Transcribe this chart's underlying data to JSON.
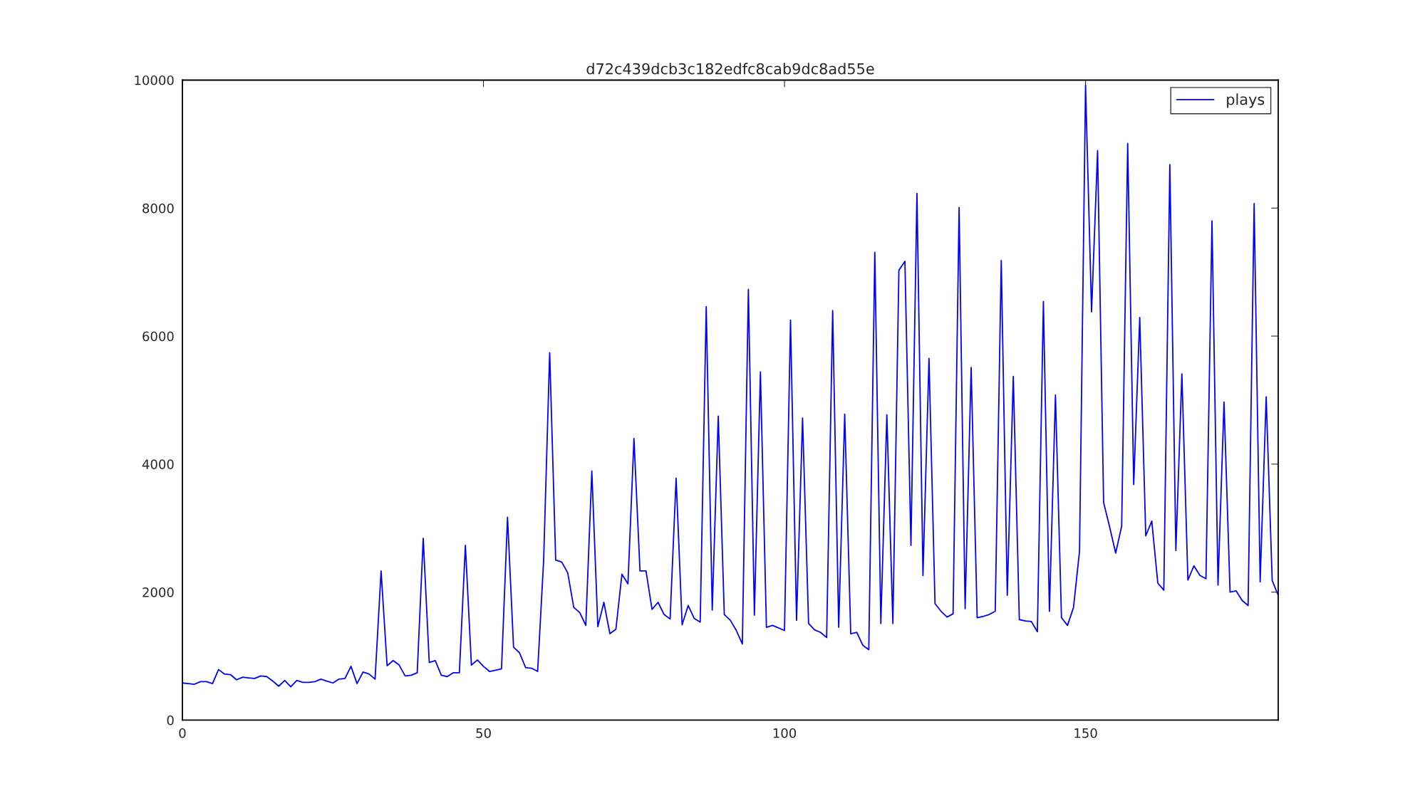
{
  "chart_data": {
    "type": "line",
    "title": "d72c439dcb3c182edfc8cab9dc8ad55e",
    "x": [
      0,
      1,
      2,
      3,
      4,
      5,
      6,
      7,
      8,
      9,
      10,
      11,
      12,
      13,
      14,
      15,
      16,
      17,
      18,
      19,
      20,
      21,
      22,
      23,
      24,
      25,
      26,
      27,
      28,
      29,
      30,
      31,
      32,
      33,
      34,
      35,
      36,
      37,
      38,
      39,
      40,
      41,
      42,
      43,
      44,
      45,
      46,
      47,
      48,
      49,
      50,
      51,
      52,
      53,
      54,
      55,
      56,
      57,
      58,
      59,
      60,
      61,
      62,
      63,
      64,
      65,
      66,
      67,
      68,
      69,
      70,
      71,
      72,
      73,
      74,
      75,
      76,
      77,
      78,
      79,
      80,
      81,
      82,
      83,
      84,
      85,
      86,
      87,
      88,
      89,
      90,
      91,
      92,
      93,
      94,
      95,
      96,
      97,
      98,
      99,
      100,
      101,
      102,
      103,
      104,
      105,
      106,
      107,
      108,
      109,
      110,
      111,
      112,
      113,
      114,
      115,
      116,
      117,
      118,
      119,
      120,
      121,
      122,
      123,
      124,
      125,
      126,
      127,
      128,
      129,
      130,
      131,
      132,
      133,
      134,
      135,
      136,
      137,
      138,
      139,
      140,
      141,
      142,
      143,
      144,
      145,
      146,
      147,
      148,
      149,
      150,
      151,
      152,
      153,
      154,
      155,
      156,
      157,
      158,
      159,
      160,
      161,
      162,
      163,
      164,
      165,
      166,
      167,
      168,
      169,
      170,
      171,
      172,
      173,
      174,
      175,
      176,
      177,
      178,
      179,
      180,
      181,
      182
    ],
    "series": [
      {
        "name": "plays",
        "color": "#0000ff",
        "values": [
          580,
          570,
          560,
          600,
          600,
          570,
          790,
          720,
          710,
          630,
          670,
          660,
          650,
          690,
          680,
          610,
          530,
          620,
          520,
          620,
          590,
          590,
          600,
          640,
          610,
          580,
          640,
          650,
          840,
          570,
          750,
          720,
          640,
          2330,
          850,
          930,
          860,
          690,
          700,
          740,
          2840,
          900,
          930,
          700,
          680,
          740,
          740,
          2730,
          860,
          940,
          840,
          760,
          780,
          800,
          3170,
          1140,
          1050,
          820,
          810,
          760,
          2500,
          5740,
          2500,
          2470,
          2300,
          1760,
          1680,
          1480,
          3890,
          1460,
          1840,
          1350,
          1420,
          2280,
          2130,
          4400,
          2330,
          2330,
          1730,
          1840,
          1650,
          1580,
          3780,
          1490,
          1790,
          1590,
          1530,
          6460,
          1720,
          4750,
          1650,
          1560,
          1400,
          1190,
          6730,
          1640,
          5440,
          1450,
          1480,
          1440,
          1400,
          6250,
          1560,
          4720,
          1510,
          1410,
          1370,
          1290,
          6400,
          1450,
          4780,
          1350,
          1370,
          1170,
          1100,
          7310,
          1510,
          4770,
          1510,
          7030,
          7170,
          2730,
          8230,
          2260,
          5650,
          1820,
          1700,
          1610,
          1660,
          8010,
          1740,
          5510,
          1600,
          1620,
          1650,
          1700,
          7180,
          1950,
          5370,
          1570,
          1550,
          1540,
          1380,
          6540,
          1700,
          5080,
          1600,
          1480,
          1760,
          2640,
          9920,
          6380,
          8900,
          3400,
          3020,
          2610,
          3030,
          9010,
          3680,
          6290,
          2880,
          3110,
          2140,
          2030,
          8680,
          2650,
          5410,
          2190,
          2410,
          2260,
          2210,
          7800,
          2110,
          4970,
          2000,
          2020,
          1870,
          1790,
          8070,
          2160,
          5050,
          2180,
          1950
        ]
      }
    ],
    "xlim": [
      0,
      182
    ],
    "ylim": [
      0,
      10000
    ],
    "xticks": [
      0,
      50,
      100,
      150
    ],
    "yticks": [
      0,
      2000,
      4000,
      6000,
      8000,
      10000
    ],
    "legend": "top right",
    "grid": false
  }
}
